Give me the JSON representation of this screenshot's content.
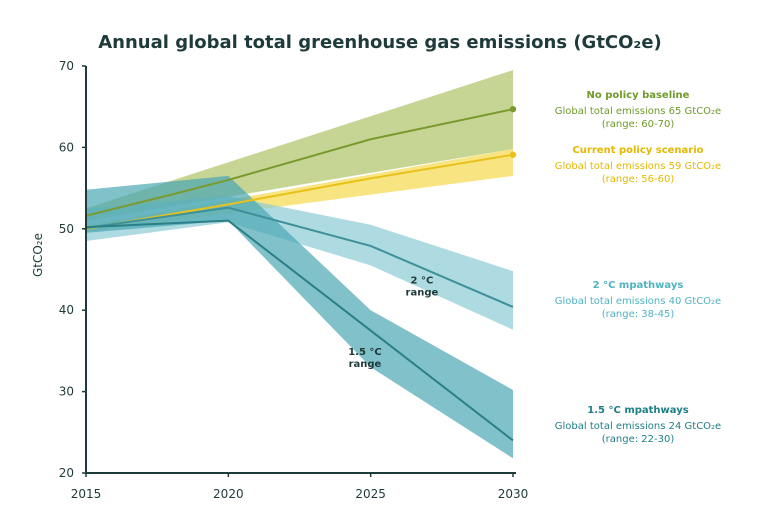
{
  "chart_data": {
    "type": "area",
    "title": "Annual global total greenhouse gas emissions (GtCO₂e)",
    "ylabel": "GtCO₂e",
    "xlabel": "",
    "x": [
      2015,
      2020,
      2025,
      2030
    ],
    "x_tick_labels": [
      "2015",
      "2020",
      "2025",
      "2030"
    ],
    "y_tick_labels": [
      "20",
      "30",
      "40",
      "50",
      "60",
      "70"
    ],
    "xlim": [
      2015,
      2030
    ],
    "ylim": [
      20,
      70
    ],
    "grid": false,
    "legend": "right",
    "series": [
      {
        "key": "baseline",
        "name": "No policy baseline",
        "line_x": [
          2015,
          2018,
          2020,
          2025,
          2030
        ],
        "line_y": [
          51.6,
          54.2,
          56.0,
          61.0,
          64.7
        ],
        "band_x": [
          2015,
          2030
        ],
        "band_low": [
          51.0,
          59.8
        ],
        "band_high": [
          52.5,
          69.5
        ],
        "end_marker": true,
        "desc": "Global total emissions 65 GtCO₂e",
        "range": "(range: 60-70)",
        "line_color": "#7a9a2e",
        "fill_color": "#a8bd5a",
        "fill_opacity": 0.65,
        "text_color": "#6f9a2a"
      },
      {
        "key": "current",
        "name": "Current policy scenario",
        "line_x": [
          2015,
          2020,
          2025,
          2030
        ],
        "line_y": [
          50.0,
          53.0,
          56.2,
          59.1
        ],
        "band_x": [
          2015,
          2030
        ],
        "band_low": [
          49.6,
          56.5
        ],
        "band_high": [
          50.4,
          59.8
        ],
        "end_marker": true,
        "desc": "Global total emissions 59 GtCO₂e",
        "range": "(range: 56-60)",
        "line_color": "#e8c21a",
        "fill_color": "#f5d84a",
        "fill_opacity": 0.7,
        "text_color": "#e4b800"
      },
      {
        "key": "two_c",
        "name": "2 °C mpathways",
        "line_x": [
          2015,
          2020,
          2025,
          2030
        ],
        "line_y": [
          50.1,
          52.6,
          47.9,
          40.4
        ],
        "band_x": [
          2015,
          2020,
          2025,
          2030
        ],
        "band_low": [
          48.5,
          50.8,
          45.5,
          37.6
        ],
        "band_high": [
          52.5,
          54.0,
          50.5,
          44.8
        ],
        "end_marker": false,
        "desc": "Global total emissions 40 GtCO₂e",
        "range": "(range: 38-45)",
        "line_color": "#3e9099",
        "fill_color": "#8ccad4",
        "fill_opacity": 0.7,
        "text_color": "#4fb3c2"
      },
      {
        "key": "one_five_c",
        "name": "1.5 °C mpathways",
        "line_x": [
          2015,
          2020,
          2025,
          2030
        ],
        "line_y": [
          50.2,
          51.0,
          37.5,
          24.0
        ],
        "band_x": [
          2015,
          2020,
          2025,
          2030
        ],
        "band_low": [
          49.5,
          51.0,
          33.0,
          21.8
        ],
        "band_high": [
          54.8,
          56.5,
          40.0,
          30.2
        ],
        "end_marker": false,
        "desc": "Global total emissions 24 GtCO₂e",
        "range": "(range: 22-30)",
        "line_color": "#2b7f88",
        "fill_color": "#4aa7b3",
        "fill_opacity": 0.7,
        "text_color": "#1f7f86"
      }
    ],
    "annotations": [
      {
        "key": "two",
        "line1": "2 °C",
        "line2": "range",
        "x": 2026.8,
        "y": 43.3
      },
      {
        "key": "onefive",
        "line1": "1.5 °C",
        "line2": "range",
        "x": 2024.8,
        "y": 34.5
      }
    ],
    "colors": {
      "axis": "#1f3a3a",
      "text": "#1f3a3a"
    }
  }
}
